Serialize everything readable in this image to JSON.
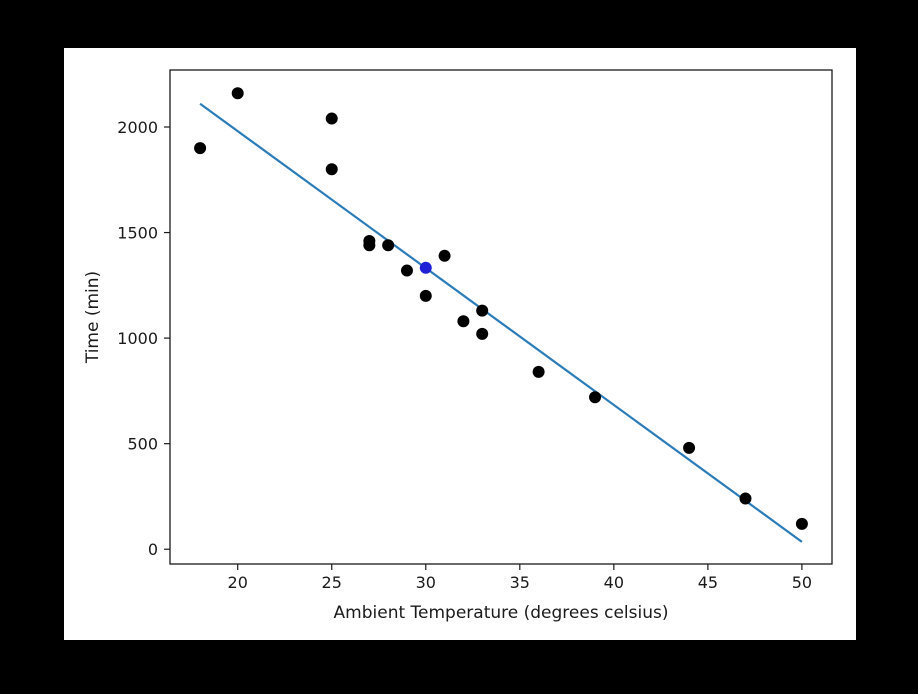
{
  "chart_data": {
    "type": "scatter",
    "title": "",
    "xlabel": "Ambient Temperature (degrees celsius)",
    "ylabel": "Time (min)",
    "xlim": [
      16.4,
      51.6
    ],
    "ylim": [
      -70,
      2270
    ],
    "x_ticks": [
      20,
      25,
      30,
      35,
      40,
      45,
      50
    ],
    "y_ticks": [
      0,
      500,
      1000,
      1500,
      2000
    ],
    "x_tick_labels": [
      "20",
      "25",
      "30",
      "35",
      "40",
      "45",
      "50"
    ],
    "y_tick_labels": [
      "0",
      "500",
      "1000",
      "1500",
      "2000"
    ],
    "grid": false,
    "legend": "none",
    "series": [
      {
        "type": "scatter",
        "color": "#000000",
        "points": [
          {
            "x": 18,
            "y": 1900
          },
          {
            "x": 20,
            "y": 2160
          },
          {
            "x": 25,
            "y": 2040
          },
          {
            "x": 25,
            "y": 1800
          },
          {
            "x": 27,
            "y": 1460
          },
          {
            "x": 27,
            "y": 1440
          },
          {
            "x": 28,
            "y": 1440
          },
          {
            "x": 29,
            "y": 1320
          },
          {
            "x": 30,
            "y": 1200
          },
          {
            "x": 31,
            "y": 1390
          },
          {
            "x": 32,
            "y": 1080
          },
          {
            "x": 33,
            "y": 1130
          },
          {
            "x": 33,
            "y": 1020
          },
          {
            "x": 36,
            "y": 840
          },
          {
            "x": 39,
            "y": 720
          },
          {
            "x": 44,
            "y": 480
          },
          {
            "x": 47,
            "y": 240
          },
          {
            "x": 50,
            "y": 120
          }
        ]
      },
      {
        "type": "scatter",
        "color": "#1f1fd6",
        "points": [
          {
            "x": 30,
            "y": 1333
          }
        ]
      },
      {
        "type": "line",
        "color": "#2b7bb9",
        "points": [
          {
            "x": 18,
            "y": 2110
          },
          {
            "x": 50,
            "y": 35
          }
        ]
      }
    ]
  }
}
